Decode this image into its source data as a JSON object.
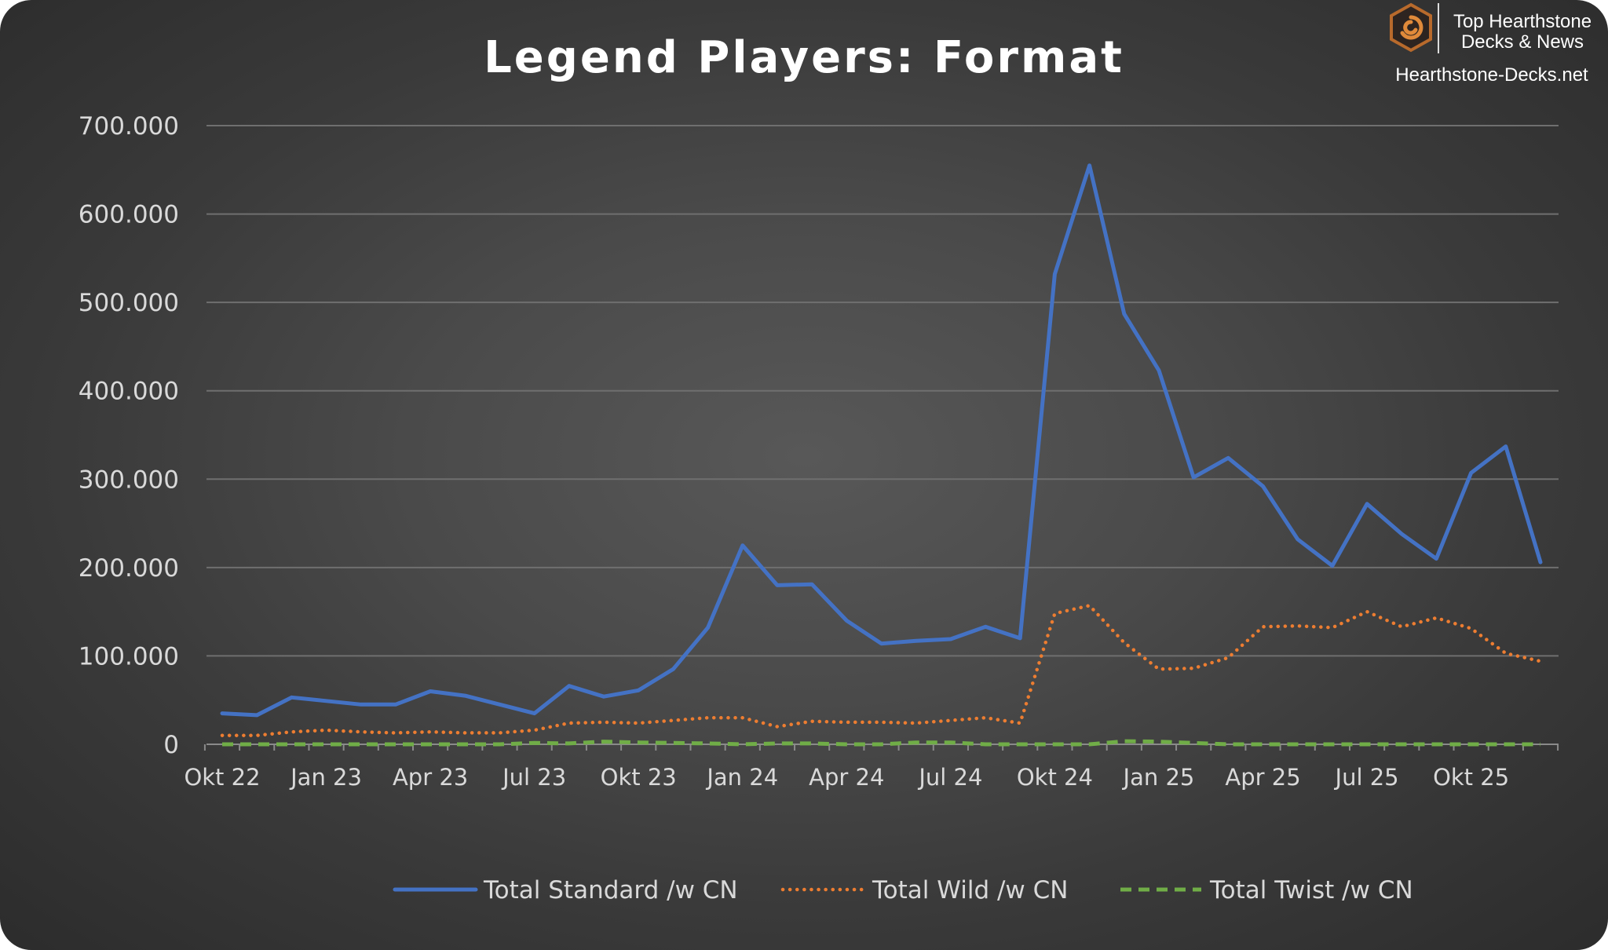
{
  "brand": {
    "line1": "Top Hearthstone",
    "line2": "Decks & News",
    "site": "Hearthstone-Decks.net"
  },
  "colors": {
    "standard": "#4472c4",
    "wild": "#ed7d31",
    "twist": "#70ad47",
    "grid": "#6f6f6f",
    "text": "#d9d9d9"
  },
  "chart_data": {
    "type": "line",
    "title": "Legend Players: Format",
    "xlabel": "",
    "ylabel": "",
    "ylim": [
      0,
      700000
    ],
    "yticks": [
      {
        "value": 0,
        "label": "0"
      },
      {
        "value": 100000,
        "label": "100.000"
      },
      {
        "value": 200000,
        "label": "200.000"
      },
      {
        "value": 300000,
        "label": "300.000"
      },
      {
        "value": 400000,
        "label": "400.000"
      },
      {
        "value": 500000,
        "label": "500.000"
      },
      {
        "value": 600000,
        "label": "600.000"
      },
      {
        "value": 700000,
        "label": "700.000"
      }
    ],
    "xticks": [
      {
        "index": 0,
        "label": "Okt 22"
      },
      {
        "index": 3,
        "label": "Jan 23"
      },
      {
        "index": 6,
        "label": "Apr 23"
      },
      {
        "index": 9,
        "label": "Jul 23"
      },
      {
        "index": 12,
        "label": "Okt 23"
      },
      {
        "index": 15,
        "label": "Jan 24"
      },
      {
        "index": 18,
        "label": "Apr 24"
      },
      {
        "index": 21,
        "label": "Jul 24"
      },
      {
        "index": 24,
        "label": "Okt 24"
      },
      {
        "index": 27,
        "label": "Jan 25"
      },
      {
        "index": 30,
        "label": "Apr 25"
      },
      {
        "index": 33,
        "label": "Jul 25"
      },
      {
        "index": 36,
        "label": "Okt 25"
      }
    ],
    "x": [
      "Okt 22",
      "Nov 22",
      "Dez 22",
      "Jan 23",
      "Feb 23",
      "Mär 23",
      "Apr 23",
      "Mai 23",
      "Jun 23",
      "Jul 23",
      "Aug 23",
      "Sep 23",
      "Okt 23",
      "Nov 23",
      "Dez 23",
      "Jan 24",
      "Feb 24",
      "Mär 24",
      "Apr 24",
      "Mai 24",
      "Jun 24",
      "Jul 24",
      "Aug 24",
      "Sep 24",
      "Okt 24",
      "Nov 24",
      "Dez 24",
      "Jan 25",
      "Feb 25",
      "Mär 25",
      "Apr 25",
      "Mai 25",
      "Jun 25",
      "Jul 25",
      "Aug 25",
      "Sep 25",
      "Okt 25",
      "Nov 25",
      "Dez 25"
    ],
    "legend_position": "bottom",
    "series": [
      {
        "name": "Total Standard /w CN",
        "style": "solid",
        "values": [
          35000,
          33000,
          53000,
          49000,
          45000,
          45000,
          60000,
          55000,
          45000,
          35000,
          66000,
          54000,
          61000,
          85000,
          132000,
          225000,
          180000,
          181000,
          140000,
          114000,
          117000,
          119000,
          133000,
          120000,
          532000,
          655000,
          487000,
          423000,
          302000,
          324000,
          292000,
          232000,
          202000,
          272000,
          238000,
          210000,
          307000,
          337000,
          206000
        ]
      },
      {
        "name": "Total Wild /w CN",
        "style": "dotted",
        "values": [
          10000,
          10000,
          14000,
          16000,
          14000,
          13000,
          14000,
          13000,
          13000,
          16000,
          24000,
          25000,
          24000,
          27000,
          30000,
          30000,
          20000,
          26000,
          25000,
          25000,
          24000,
          27000,
          30000,
          24000,
          148000,
          157000,
          115000,
          85000,
          86000,
          98000,
          133000,
          134000,
          132000,
          150000,
          133000,
          143000,
          131000,
          103000,
          94000
        ]
      },
      {
        "name": "Total Twist /w CN",
        "style": "dashed",
        "values": [
          0,
          0,
          0,
          0,
          0,
          0,
          0,
          0,
          0,
          1500,
          1000,
          3000,
          2000,
          1500,
          1000,
          0,
          1000,
          1000,
          0,
          0,
          2000,
          2000,
          0,
          0,
          0,
          0,
          3500,
          3000,
          1500,
          0,
          0,
          0,
          0,
          0,
          0,
          0,
          0,
          0,
          0
        ]
      }
    ]
  }
}
